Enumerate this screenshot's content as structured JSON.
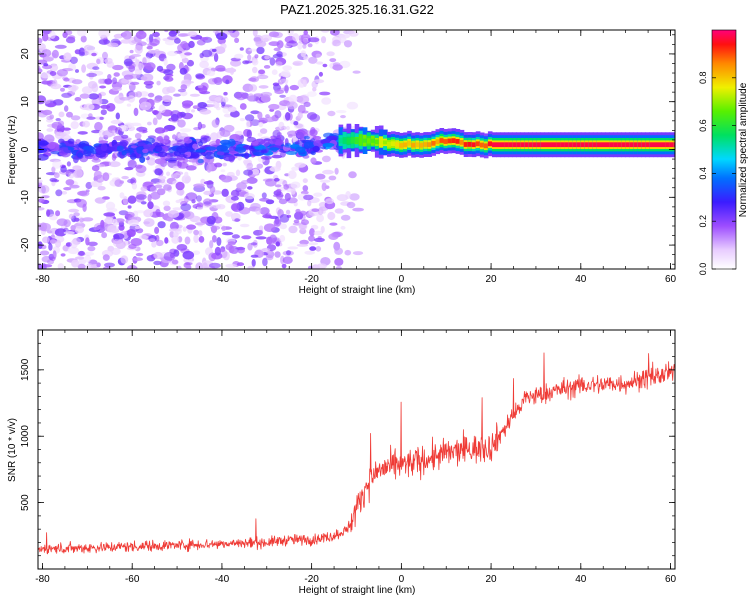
{
  "title": "PAZ1.2025.325.16.31.G22",
  "chart_data": [
    {
      "type": "heatmap",
      "name": "spectrogram",
      "xlabel": "Height of straight line (km)",
      "ylabel": "Frequency (Hz)",
      "xlim": [
        -81,
        61
      ],
      "ylim": [
        -25,
        25
      ],
      "xticks": [
        -80,
        -60,
        -40,
        -20,
        0,
        20,
        40,
        60
      ],
      "yticks": [
        -20,
        -10,
        0,
        10,
        20
      ],
      "ridge": {
        "x": [
          -80,
          -70,
          -60,
          -50,
          -40,
          -30,
          -20,
          -14,
          -10,
          -5,
          0,
          5,
          10,
          15,
          20,
          30,
          40,
          50,
          61
        ],
        "y": [
          0.5,
          0,
          0,
          0,
          0,
          0.5,
          0.5,
          2,
          2,
          1.5,
          1.0,
          1.0,
          2.0,
          1.0,
          1.0,
          1.0,
          1.0,
          1.0,
          1.0
        ],
        "amplitude": [
          0.3,
          0.35,
          0.35,
          0.35,
          0.4,
          0.45,
          0.45,
          0.55,
          0.65,
          0.75,
          0.85,
          0.9,
          0.92,
          0.95,
          0.97,
          0.98,
          0.98,
          0.98,
          0.98
        ]
      },
      "colorbar": {
        "label": "Normalized spectral amplitude",
        "range": [
          0,
          1
        ],
        "ticks": [
          0.0,
          0.2,
          0.4,
          0.6,
          0.8
        ],
        "tick_labels": [
          "0.0",
          "0.2",
          "0.4",
          "0.6",
          "0.8"
        ]
      }
    },
    {
      "type": "line",
      "name": "snr",
      "xlabel": "Height of straight line (km)",
      "ylabel": "SNR (10 * v/v)",
      "xlim": [
        -81,
        61
      ],
      "ylim": [
        0,
        1800
      ],
      "xticks": [
        -80,
        -60,
        -40,
        -20,
        0,
        20,
        40,
        60
      ],
      "yticks": [
        500,
        1000,
        1500
      ],
      "series": [
        {
          "name": "SNR",
          "color": "#ef3b36",
          "x": [
            -81,
            -70,
            -60,
            -50,
            -40,
            -30,
            -25,
            -20,
            -15,
            -12,
            -10,
            -8,
            -5,
            0,
            5,
            10,
            15,
            20,
            25,
            28,
            30,
            35,
            40,
            50,
            61
          ],
          "y": [
            150,
            160,
            170,
            180,
            190,
            200,
            220,
            220,
            250,
            300,
            450,
            620,
            750,
            780,
            820,
            870,
            900,
            920,
            1150,
            1300,
            1300,
            1350,
            1380,
            1400,
            1480
          ]
        }
      ]
    }
  ]
}
